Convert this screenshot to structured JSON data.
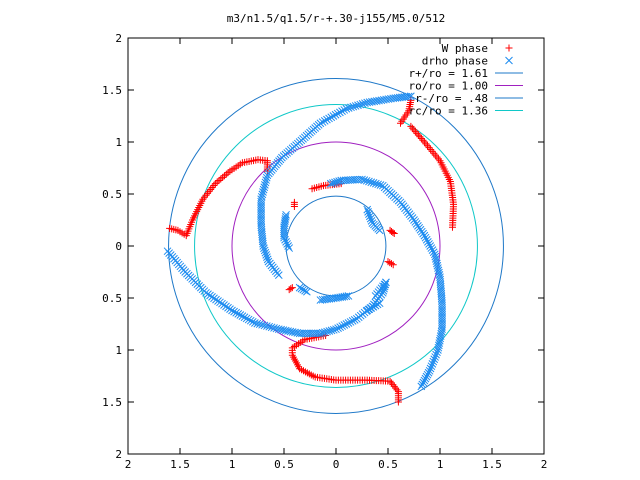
{
  "chart_data": {
    "type": "scatter",
    "title": "m3/n1.5/q1.5/r-+.30-j155/M5.0/512",
    "xlim": [
      -2,
      2
    ],
    "ylim": [
      -2,
      2
    ],
    "xticks": [
      {
        "value": -2,
        "label": "2"
      },
      {
        "value": -1.5,
        "label": "1.5"
      },
      {
        "value": -1,
        "label": "1"
      },
      {
        "value": -0.5,
        "label": "0.5"
      },
      {
        "value": 0,
        "label": "0"
      },
      {
        "value": 0.5,
        "label": "0.5"
      },
      {
        "value": 1,
        "label": "1"
      },
      {
        "value": 1.5,
        "label": "1.5"
      },
      {
        "value": 2,
        "label": "2"
      }
    ],
    "yticks": [
      {
        "value": 2,
        "label": "2"
      },
      {
        "value": 1.5,
        "label": "1.5"
      },
      {
        "value": 1,
        "label": "1"
      },
      {
        "value": 0.5,
        "label": "0.5"
      },
      {
        "value": 0,
        "label": "0"
      },
      {
        "value": -0.5,
        "label": "0.5"
      },
      {
        "value": -1,
        "label": "1"
      },
      {
        "value": -1.5,
        "label": "1.5"
      },
      {
        "value": -2,
        "label": "2"
      }
    ],
    "legend_position": "top-right",
    "series": [
      {
        "name": "W phase",
        "marker": "plus",
        "color": "#ff0000",
        "curves": [
          [
            [
              -1.6,
              0.17
            ],
            [
              -1.52,
              0.15
            ],
            [
              -1.44,
              0.1
            ],
            [
              -1.38,
              0.25
            ],
            [
              -1.28,
              0.45
            ],
            [
              -1.16,
              0.6
            ],
            [
              -1.02,
              0.72
            ],
            [
              -0.9,
              0.8
            ],
            [
              -0.75,
              0.83
            ],
            [
              -0.66,
              0.82
            ],
            [
              -0.66,
              0.72
            ]
          ],
          [
            [
              0.6,
              -1.5
            ],
            [
              0.6,
              -1.4
            ],
            [
              0.52,
              -1.3
            ],
            [
              0.3,
              -1.29
            ],
            [
              0.0,
              -1.29
            ],
            [
              -0.2,
              -1.26
            ],
            [
              -0.35,
              -1.18
            ],
            [
              -0.42,
              -1.05
            ],
            [
              -0.42,
              -0.98
            ],
            [
              -0.3,
              -0.9
            ],
            [
              -0.1,
              -0.86
            ]
          ],
          [
            [
              0.62,
              1.18
            ],
            [
              0.7,
              1.3
            ],
            [
              0.72,
              1.4
            ]
          ],
          [
            [
              0.72,
              1.15
            ],
            [
              0.85,
              1.0
            ],
            [
              1.0,
              0.82
            ],
            [
              1.1,
              0.62
            ],
            [
              1.13,
              0.4
            ],
            [
              1.12,
              0.18
            ]
          ],
          [
            [
              -0.23,
              0.55
            ],
            [
              -0.12,
              0.58
            ],
            [
              0.05,
              0.6
            ]
          ],
          [
            [
              0.52,
              0.15
            ],
            [
              0.56,
              0.12
            ]
          ],
          [
            [
              -0.45,
              -0.42
            ],
            [
              -0.42,
              -0.4
            ]
          ],
          [
            [
              -0.4,
              0.38
            ],
            [
              -0.4,
              0.42
            ]
          ],
          [
            [
              0.5,
              -0.15
            ],
            [
              0.55,
              -0.18
            ]
          ]
        ]
      },
      {
        "name": "drho phase",
        "marker": "cross",
        "color": "#1e8cf0",
        "curves": [
          [
            [
              -1.62,
              -0.05
            ],
            [
              -1.45,
              -0.25
            ],
            [
              -1.25,
              -0.45
            ],
            [
              -1.0,
              -0.62
            ],
            [
              -0.78,
              -0.74
            ],
            [
              -0.55,
              -0.8
            ],
            [
              -0.35,
              -0.84
            ],
            [
              -0.15,
              -0.84
            ],
            [
              0.0,
              -0.8
            ],
            [
              0.2,
              -0.7
            ],
            [
              0.35,
              -0.58
            ],
            [
              0.45,
              -0.45
            ],
            [
              0.48,
              -0.35
            ]
          ],
          [
            [
              0.82,
              -1.35
            ],
            [
              0.9,
              -1.2
            ],
            [
              0.98,
              -1.0
            ],
            [
              1.02,
              -0.8
            ],
            [
              1.02,
              -0.55
            ],
            [
              1.0,
              -0.3
            ],
            [
              0.95,
              -0.08
            ],
            [
              0.85,
              0.1
            ],
            [
              0.75,
              0.25
            ],
            [
              0.62,
              0.42
            ],
            [
              0.45,
              0.58
            ],
            [
              0.25,
              0.64
            ],
            [
              0.05,
              0.63
            ],
            [
              -0.05,
              0.6
            ]
          ],
          [
            [
              -0.55,
              -0.28
            ],
            [
              -0.65,
              -0.15
            ],
            [
              -0.7,
              0.0
            ],
            [
              -0.72,
              0.2
            ],
            [
              -0.72,
              0.45
            ],
            [
              -0.66,
              0.68
            ],
            [
              -0.52,
              0.85
            ],
            [
              -0.35,
              1.0
            ],
            [
              -0.15,
              1.18
            ],
            [
              0.1,
              1.32
            ],
            [
              0.3,
              1.38
            ],
            [
              0.55,
              1.42
            ],
            [
              0.72,
              1.44
            ]
          ],
          [
            [
              -0.48,
              0.3
            ],
            [
              -0.5,
              0.18
            ],
            [
              -0.5,
              0.08
            ],
            [
              -0.45,
              -0.02
            ]
          ],
          [
            [
              0.3,
              0.35
            ],
            [
              0.35,
              0.22
            ],
            [
              0.42,
              0.15
            ]
          ],
          [
            [
              -0.15,
              -0.52
            ],
            [
              0.0,
              -0.5
            ],
            [
              0.12,
              -0.48
            ]
          ],
          [
            [
              0.38,
              -0.48
            ],
            [
              0.48,
              -0.35
            ]
          ],
          [
            [
              -0.35,
              -0.4
            ],
            [
              -0.28,
              -0.44
            ]
          ],
          [
            [
              0.3,
              -0.62
            ],
            [
              0.42,
              -0.55
            ]
          ]
        ]
      }
    ],
    "circles": [
      {
        "name": "r+/ro = 1.61",
        "radius": 1.61,
        "color": "#1e78c8"
      },
      {
        "name": "ro/ro = 1.00",
        "radius": 1.0,
        "color": "#a020c0"
      },
      {
        "name": "r-/ro = .48",
        "radius": 0.48,
        "color": "#1e78c8"
      },
      {
        "name": "rc/ro = 1.36",
        "radius": 1.36,
        "color": "#10c8c8"
      }
    ]
  }
}
